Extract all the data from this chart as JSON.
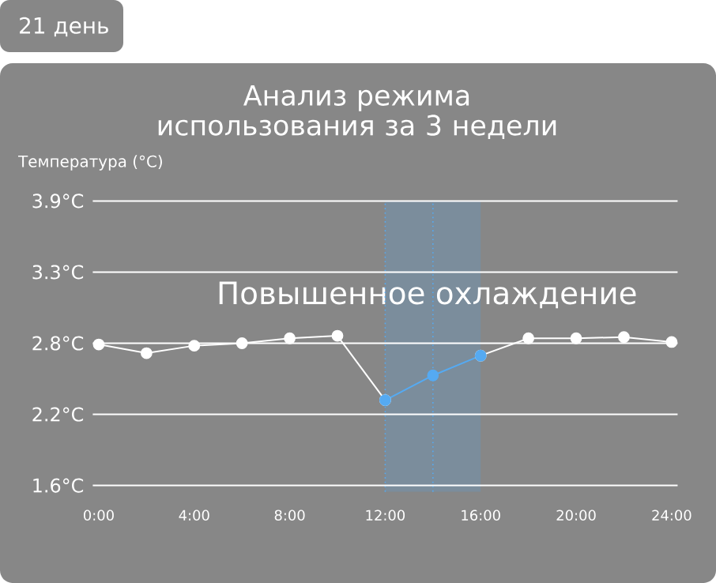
{
  "chart_data": {
    "type": "line",
    "title": "Анализ режима использования за 3 недели",
    "ylabel": "Температура (°C)",
    "annotations": [
      "21 день"
    ],
    "xlim": [
      -0.25,
      24.25
    ],
    "ylim": [
      1.55,
      3.9
    ],
    "xticks": [
      {
        "value": 0,
        "label": "0:00"
      },
      {
        "value": 4,
        "label": "4:00"
      },
      {
        "value": 8,
        "label": "8:00"
      },
      {
        "value": 12,
        "label": "12:00"
      },
      {
        "value": 16,
        "label": "16:00"
      },
      {
        "value": 20,
        "label": "20:00"
      },
      {
        "value": 24,
        "label": "24:00"
      }
    ],
    "yticks": [
      {
        "value": 1.6,
        "label": "1.6°C"
      },
      {
        "value": 2.175,
        "label": "2.2°C"
      },
      {
        "value": 2.75,
        "label": "2.8°C"
      },
      {
        "value": 3.325,
        "label": "3.3°C"
      },
      {
        "value": 3.9,
        "label": "3.9°C"
      }
    ],
    "series": [
      {
        "color": "#ffffff",
        "x": [
          0,
          2,
          4,
          6,
          8,
          10,
          12
        ],
        "values": [
          2.74,
          2.67,
          2.73,
          2.75,
          2.79,
          2.81,
          2.29
        ]
      },
      {
        "color": "#ffffff",
        "x": [
          16,
          18,
          20,
          22,
          24
        ],
        "values": [
          2.65,
          2.79,
          2.79,
          2.8,
          2.76
        ]
      },
      {
        "color": "#55aaf2",
        "x": [
          12,
          14,
          16
        ],
        "values": [
          2.29,
          2.49,
          2.65
        ]
      }
    ],
    "bands": [
      {
        "axis": "x",
        "from": 12,
        "to": 16,
        "label": "Повышенное охлаждение",
        "color": "#7b8d9c"
      }
    ],
    "ref_lines": [
      {
        "axis": "x",
        "value": 12,
        "color": "#55aaf2",
        "line_style": "dotted"
      },
      {
        "axis": "x",
        "value": 14,
        "color": "#55aaf2",
        "line_style": "dotted"
      }
    ],
    "grid": "y",
    "marker": "circle",
    "line_style": "solid"
  }
}
